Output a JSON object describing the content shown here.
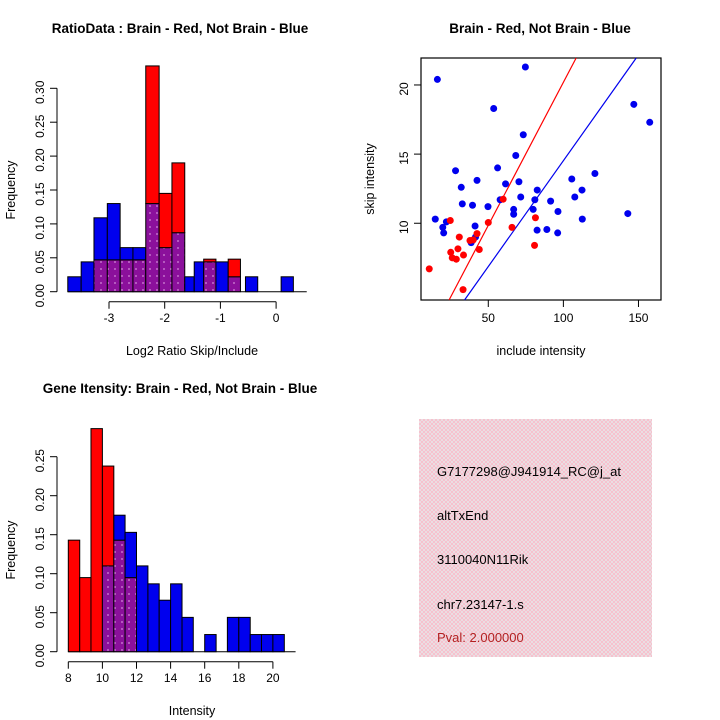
{
  "colors": {
    "red": "#ff0000",
    "blue": "#0000ee",
    "purple_overlap": "#8b109b",
    "purple_dot": "#c36ecb",
    "panel_pink": "#f6c2ce",
    "pval_red": "#b22222",
    "axis_black": "#000000",
    "background": "#ffffff"
  },
  "chart_data": [
    {
      "type": "histogram",
      "id": "ratio-histogram",
      "title": "RatioData : Brain - Red, Not Brain - Blue",
      "xlabel": "Log2 Ratio Skip/Include",
      "ylabel": "Frequency",
      "xlim": [
        -3.9,
        0.6
      ],
      "ylim": [
        0,
        0.333
      ],
      "xticks": {
        "values": [
          -3,
          -2,
          -1,
          0
        ],
        "labels": [
          "-3",
          "-2",
          "-1",
          "0"
        ]
      },
      "yticks": {
        "values": [
          0,
          0.05,
          0.1,
          0.15,
          0.2,
          0.25,
          0.3
        ],
        "labels": [
          "0.00",
          "0.05",
          "0.10",
          "0.15",
          "0.20",
          "0.25",
          "0.30"
        ]
      },
      "baseline_extent": [
        -3.74,
        0.55
      ],
      "series_note": {
        "red": "Brain",
        "blue": "Not Brain",
        "overlap": "purple"
      },
      "bars": [
        {
          "x0": -3.74,
          "x1": -3.5,
          "blue": 0.022,
          "red": 0
        },
        {
          "x0": -3.5,
          "x1": -3.27,
          "blue": 0.044,
          "red": 0
        },
        {
          "x0": -3.27,
          "x1": -3.03,
          "blue": 0.109,
          "red": 0.047
        },
        {
          "x0": -3.03,
          "x1": -2.8,
          "blue": 0.13,
          "red": 0.047
        },
        {
          "x0": -2.8,
          "x1": -2.57,
          "blue": 0.065,
          "red": 0.047
        },
        {
          "x0": -2.57,
          "x1": -2.34,
          "blue": 0.065,
          "red": 0.047
        },
        {
          "x0": -2.34,
          "x1": -2.1,
          "blue": 0.13,
          "red": 0.333
        },
        {
          "x0": -2.1,
          "x1": -1.87,
          "blue": 0.065,
          "red": 0.145
        },
        {
          "x0": -1.87,
          "x1": -1.64,
          "blue": 0.087,
          "red": 0.19
        },
        {
          "x0": -1.64,
          "x1": -1.47,
          "blue": 0.022,
          "red": 0
        },
        {
          "x0": -1.47,
          "x1": -1.3,
          "blue": 0.044,
          "red": 0
        },
        {
          "x0": -1.3,
          "x1": -1.08,
          "blue": 0.044,
          "red": 0.048
        },
        {
          "x0": -1.08,
          "x1": -0.86,
          "blue": 0.044,
          "red": 0
        },
        {
          "x0": -0.86,
          "x1": -0.64,
          "blue": 0.022,
          "red": 0.048
        },
        {
          "x0": -0.55,
          "x1": -0.33,
          "blue": 0.022,
          "red": 0
        },
        {
          "x0": 0.09,
          "x1": 0.31,
          "blue": 0.022,
          "red": 0
        }
      ]
    },
    {
      "type": "scatter",
      "id": "intensity-scatter",
      "title": "Brain - Red, Not Brain - Blue",
      "xlabel": "include intensity",
      "ylabel": "skip intensity",
      "xlim": [
        5.2,
        165
      ],
      "ylim": [
        4.45,
        21.95
      ],
      "xticks": {
        "values": [
          50,
          100,
          150
        ],
        "labels": [
          "50",
          "100",
          "150"
        ]
      },
      "yticks": {
        "values": [
          10,
          15,
          20
        ],
        "labels": [
          "10",
          "15",
          "20"
        ]
      },
      "blue_points": [
        [
          16.1,
          20.4
        ],
        [
          74.7,
          21.3
        ],
        [
          53.6,
          18.3
        ],
        [
          146.9,
          18.6
        ],
        [
          157.5,
          17.3
        ],
        [
          73.3,
          16.4
        ],
        [
          68.3,
          14.9
        ],
        [
          28.2,
          13.8
        ],
        [
          56.2,
          14.0
        ],
        [
          42.5,
          13.1
        ],
        [
          70.4,
          13.0
        ],
        [
          105.6,
          13.2
        ],
        [
          121,
          13.6
        ],
        [
          32,
          12.6
        ],
        [
          112.4,
          12.4
        ],
        [
          82.6,
          12.4
        ],
        [
          71.6,
          11.9
        ],
        [
          57.9,
          11.7
        ],
        [
          107.6,
          11.9
        ],
        [
          32.7,
          11.4
        ],
        [
          39.5,
          11.3
        ],
        [
          49.8,
          11.2
        ],
        [
          61.5,
          12.85
        ],
        [
          66.9,
          11.0
        ],
        [
          66.9,
          10.65
        ],
        [
          81,
          11.7
        ],
        [
          79.9,
          11.0
        ],
        [
          91.5,
          11.6
        ],
        [
          96.4,
          10.85
        ],
        [
          14.7,
          10.3
        ],
        [
          19.7,
          9.7
        ],
        [
          20.3,
          9.3
        ],
        [
          22.1,
          10.1
        ],
        [
          41.2,
          9.8
        ],
        [
          41.5,
          9.0
        ],
        [
          82.5,
          9.5
        ],
        [
          89,
          9.55
        ],
        [
          96.2,
          9.3
        ],
        [
          112.6,
          10.3
        ],
        [
          142.9,
          10.7
        ],
        [
          38.6,
          8.6
        ]
      ],
      "red_points": [
        [
          10.7,
          6.7
        ],
        [
          33.2,
          5.2
        ],
        [
          24.7,
          10.2
        ],
        [
          26,
          7.5
        ],
        [
          28.7,
          7.4
        ],
        [
          25,
          7.9
        ],
        [
          33.5,
          7.7
        ],
        [
          29.8,
          8.15
        ],
        [
          30.7,
          9.0
        ],
        [
          37.8,
          8.75
        ],
        [
          40,
          8.8
        ],
        [
          42.5,
          9.25
        ],
        [
          44,
          8.1
        ],
        [
          50,
          10.05
        ],
        [
          59.9,
          11.74
        ],
        [
          65.8,
          9.7
        ],
        [
          80.8,
          8.4
        ],
        [
          81.4,
          10.4
        ]
      ],
      "red_line": {
        "x1": 23.9,
        "y1": 4.45,
        "x2": 108.5,
        "y2": 21.95
      },
      "blue_line": {
        "x1": 34.2,
        "y1": 4.45,
        "x2": 148.5,
        "y2": 21.95
      }
    },
    {
      "type": "histogram",
      "id": "gene-intensity-histogram",
      "title": "Gene Itensity: Brain - Red, Not Brain - Blue",
      "xlabel": "Intensity",
      "ylabel": "Frequency",
      "xlim": [
        7.8,
        21.5
      ],
      "ylim": [
        0,
        0.29
      ],
      "xticks": {
        "values": [
          8,
          10,
          12,
          14,
          16,
          18,
          20
        ],
        "labels": [
          "8",
          "10",
          "12",
          "14",
          "16",
          "18",
          "20"
        ]
      },
      "yticks": {
        "values": [
          0,
          0.05,
          0.1,
          0.15,
          0.2,
          0.25
        ],
        "labels": [
          "0.00",
          "0.05",
          "0.10",
          "0.15",
          "0.20",
          "0.25"
        ]
      },
      "baseline_extent": [
        8,
        21.33
      ],
      "series_note": {
        "red": "Brain",
        "blue": "Not Brain",
        "overlap": "purple"
      },
      "bars": [
        {
          "x0": 8.0,
          "x1": 8.67,
          "blue": 0,
          "red": 0.143
        },
        {
          "x0": 8.67,
          "x1": 9.33,
          "blue": 0,
          "red": 0.095
        },
        {
          "x0": 9.33,
          "x1": 10.0,
          "blue": 0,
          "red": 0.286
        },
        {
          "x0": 10.0,
          "x1": 10.67,
          "blue": 0.11,
          "red": 0.238
        },
        {
          "x0": 10.67,
          "x1": 11.33,
          "blue": 0.175,
          "red": 0.143
        },
        {
          "x0": 11.33,
          "x1": 12.0,
          "blue": 0.153,
          "red": 0.095
        },
        {
          "x0": 12.0,
          "x1": 12.67,
          "blue": 0.11,
          "red": 0
        },
        {
          "x0": 12.67,
          "x1": 13.33,
          "blue": 0.087,
          "red": 0
        },
        {
          "x0": 13.33,
          "x1": 14.0,
          "blue": 0.066,
          "red": 0
        },
        {
          "x0": 14.0,
          "x1": 14.67,
          "blue": 0.087,
          "red": 0
        },
        {
          "x0": 14.67,
          "x1": 15.33,
          "blue": 0.044,
          "red": 0
        },
        {
          "x0": 16.0,
          "x1": 16.67,
          "blue": 0.022,
          "red": 0
        },
        {
          "x0": 17.33,
          "x1": 18.0,
          "blue": 0.044,
          "red": 0
        },
        {
          "x0": 18.0,
          "x1": 18.67,
          "blue": 0.044,
          "red": 0
        },
        {
          "x0": 18.67,
          "x1": 19.33,
          "blue": 0.022,
          "red": 0
        },
        {
          "x0": 19.33,
          "x1": 20.0,
          "blue": 0.022,
          "red": 0
        },
        {
          "x0": 20.0,
          "x1": 20.67,
          "blue": 0.022,
          "red": 0
        }
      ]
    }
  ],
  "info_panel": {
    "lines": [
      {
        "text": "G7177298@J941914_RC@j_at"
      },
      {
        "text": "altTxEnd"
      },
      {
        "text": "3110040N11Rik"
      },
      {
        "text": "chr7.23147-1.s"
      }
    ],
    "pval": {
      "text": "Pval: 2.000000"
    }
  }
}
